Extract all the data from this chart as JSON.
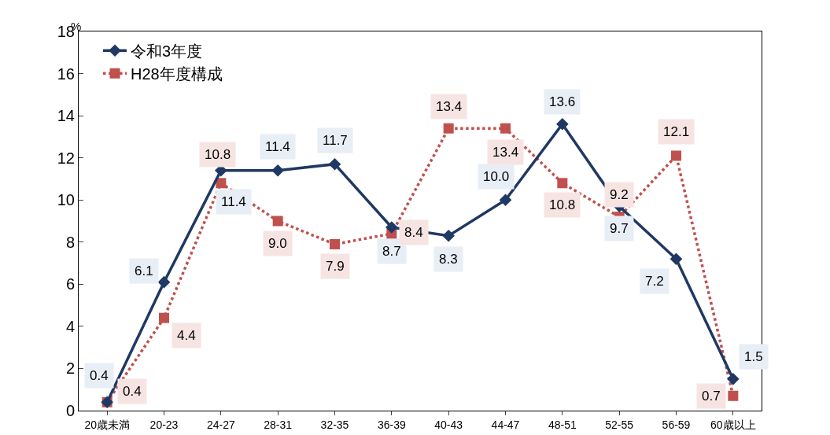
{
  "chart_data": {
    "type": "line",
    "ylabel": "%",
    "categories": [
      "20歳未満",
      "20-23",
      "24-27",
      "28-31",
      "32-35",
      "36-39",
      "40-43",
      "44-47",
      "48-51",
      "52-55",
      "56-59",
      "60歳以上"
    ],
    "series": [
      {
        "name": "令和3年度",
        "color": "#1f3864",
        "marker": "diamond",
        "line_style": "solid",
        "values": [
          0.4,
          6.1,
          11.4,
          11.4,
          11.7,
          8.7,
          8.3,
          10.0,
          13.6,
          9.7,
          7.2,
          1.5
        ],
        "value_labels": [
          "0.4",
          "6.1",
          "11.4",
          "11.4",
          "11.7",
          "8.7",
          "8.3",
          "10.0",
          "13.6",
          "9.7",
          "7.2",
          "1.5"
        ]
      },
      {
        "name": "H28年度構成",
        "color": "#c0504d",
        "marker": "square",
        "line_style": "dotted",
        "values": [
          0.4,
          4.4,
          10.8,
          9.0,
          7.9,
          8.4,
          13.4,
          13.4,
          10.8,
          9.2,
          12.1,
          0.7
        ],
        "value_labels": [
          "0.4",
          "4.4",
          "10.8",
          "9.0",
          "7.9",
          "8.4",
          "13.4",
          "13.4",
          "10.8",
          "9.2",
          "12.1",
          "0.7"
        ]
      }
    ],
    "ylim": [
      0,
      18
    ],
    "yticks": [
      0,
      2,
      4,
      6,
      8,
      10,
      12,
      14,
      16,
      18
    ],
    "grid": false,
    "legend": "top left"
  }
}
